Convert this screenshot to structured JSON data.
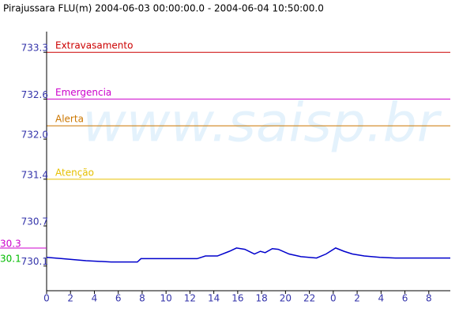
{
  "chart_data": {
    "type": "line",
    "title": "Pirajussara FLU(m) 2004-06-03 00:00:00.0 - 2004-06-04 10:50:00.0",
    "watermark": "www.saisp.br",
    "x": [
      0,
      1.3,
      3.3,
      5.4,
      7.6,
      7.9,
      12.6,
      13.3,
      14.3,
      15.3,
      15.9,
      16.6,
      17.4,
      17.9,
      18.3,
      18.9,
      19.4,
      20.3,
      21.3,
      22.6,
      23.4,
      24.2,
      24.9,
      25.6,
      26.6,
      27.9,
      29.2,
      33.8
    ],
    "values": [
      730.23,
      730.21,
      730.18,
      730.16,
      730.16,
      730.21,
      730.21,
      730.25,
      730.25,
      730.32,
      730.37,
      730.35,
      730.28,
      730.32,
      730.3,
      730.36,
      730.35,
      730.28,
      730.24,
      730.22,
      730.28,
      730.37,
      730.32,
      730.28,
      730.25,
      730.23,
      730.22,
      730.22
    ],
    "color": "#0000cc",
    "xlim": [
      0,
      33.8
    ],
    "ylim": [
      729.73,
      733.61
    ],
    "xticks": [
      0,
      2,
      4,
      6,
      8,
      10,
      12,
      14,
      16,
      18,
      20,
      22,
      {
        "value": 24,
        "label": "0"
      },
      {
        "value": 26,
        "label": "2"
      },
      {
        "value": 28,
        "label": "4"
      },
      {
        "value": 30,
        "label": "6"
      },
      {
        "value": 32,
        "label": "8"
      }
    ],
    "yticks": [
      730.1,
      730.7,
      731.4,
      {
        "value": 732,
        "label": "732.0"
      },
      732.6,
      733.3
    ],
    "thresholds": [
      {
        "name": "Extravasamento",
        "value": 733.3,
        "color": "#cc0000"
      },
      {
        "name": "Emergencia",
        "value": 732.6,
        "color": "#cc00cc"
      },
      {
        "name": "Alerta",
        "value": 732.2,
        "color": "#cc7700"
      },
      {
        "name": "Atenção",
        "value": 731.4,
        "color": "#e6c000"
      }
    ],
    "level_labels": [
      {
        "text": "30.3",
        "color": "#cc00cc"
      },
      {
        "text": "30.1",
        "color": "#00bb00"
      }
    ]
  }
}
